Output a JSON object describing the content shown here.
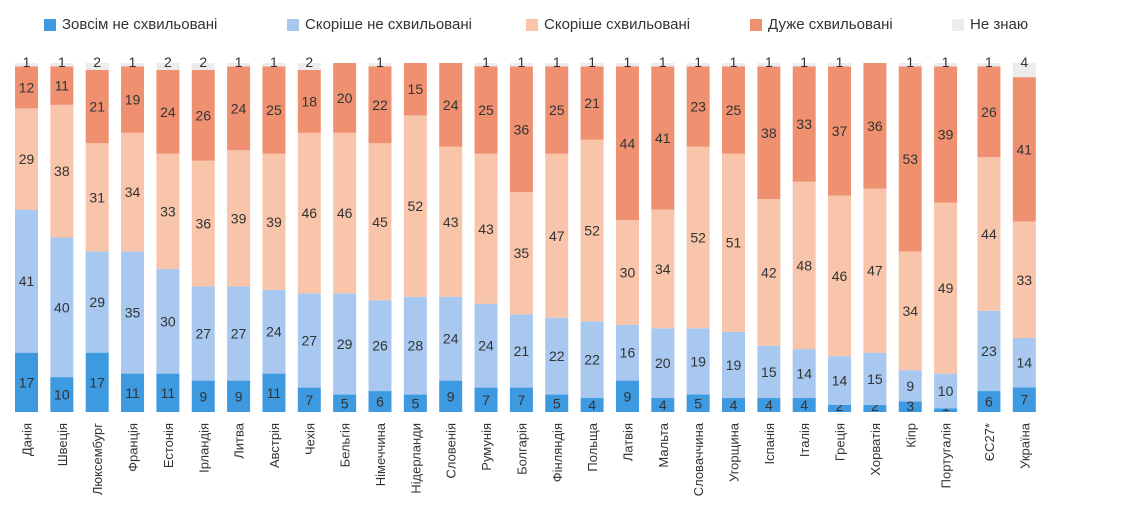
{
  "chart_data": {
    "type": "bar",
    "stacked": true,
    "orientation": "vertical",
    "legend_position": "top",
    "ylim": [
      0,
      100
    ],
    "grid": false,
    "categories": [
      "Данія",
      "Швеція",
      "Люксембург",
      "Франція",
      "Естонія",
      "Ірландія",
      "Литва",
      "Австрія",
      "Чехія",
      "Бельгія",
      "Німеччина",
      "Нідерланди",
      "Словенія",
      "Румунія",
      "Болгарія",
      "Фінляндія",
      "Польща",
      "Латвія",
      "Мальта",
      "Словаччина",
      "Угорщина",
      "Іспанія",
      "Італія",
      "Греція",
      "Хорватія",
      "Кіпр",
      "Португалія",
      "ЄС27*",
      "Україна"
    ],
    "series": [
      {
        "name": "Зовсім не схвильовані",
        "color": "#3d9ae0",
        "values": [
          17,
          10,
          17,
          11,
          11,
          9,
          9,
          11,
          7,
          5,
          6,
          5,
          9,
          7,
          7,
          5,
          4,
          9,
          4,
          5,
          4,
          4,
          4,
          2,
          2,
          3,
          1,
          6,
          7
        ]
      },
      {
        "name": "Скоріше не схвильовані",
        "color": "#a8c8f0",
        "values": [
          41,
          40,
          29,
          35,
          30,
          27,
          27,
          24,
          27,
          29,
          26,
          28,
          24,
          24,
          21,
          22,
          22,
          16,
          20,
          19,
          19,
          15,
          14,
          14,
          15,
          9,
          10,
          23,
          14
        ]
      },
      {
        "name": "Скоріше схвильовані",
        "color": "#f8c4aa",
        "values": [
          29,
          38,
          31,
          34,
          33,
          36,
          39,
          39,
          46,
          46,
          45,
          52,
          43,
          43,
          35,
          47,
          52,
          30,
          34,
          52,
          51,
          42,
          48,
          46,
          47,
          34,
          49,
          44,
          33
        ]
      },
      {
        "name": "Дуже схвильовані",
        "color": "#ef9170",
        "values": [
          12,
          11,
          21,
          19,
          24,
          26,
          24,
          25,
          18,
          20,
          22,
          15,
          24,
          25,
          36,
          25,
          21,
          44,
          41,
          23,
          25,
          38,
          33,
          37,
          36,
          53,
          39,
          26,
          41
        ]
      },
      {
        "name": "Не знаю",
        "color": "#ececec",
        "values": [
          1,
          1,
          2,
          1,
          2,
          2,
          1,
          1,
          2,
          null,
          1,
          null,
          null,
          1,
          1,
          1,
          1,
          1,
          1,
          1,
          1,
          1,
          1,
          1,
          null,
          1,
          1,
          1,
          4
        ]
      }
    ]
  }
}
